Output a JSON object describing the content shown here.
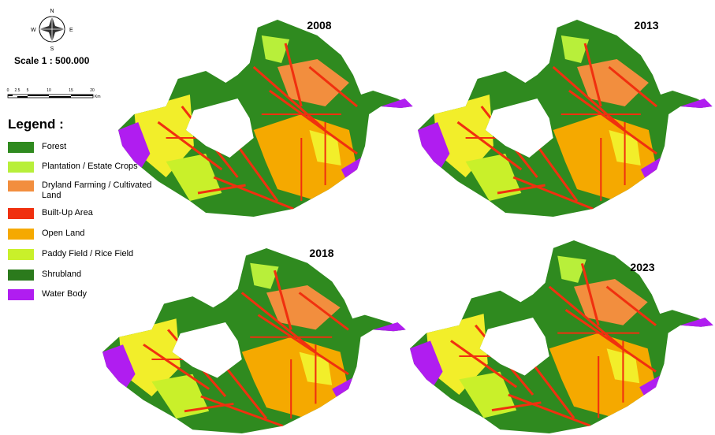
{
  "compass": {
    "north": "N",
    "south": "S",
    "east": "E",
    "west": "W"
  },
  "scale": {
    "label": "Scale 1 : 500.000",
    "ticks": [
      "0",
      "2.5",
      "5",
      "10",
      "15",
      "20"
    ],
    "unit": "Km"
  },
  "legend": {
    "title": "Legend :",
    "items": [
      {
        "label": "Forest",
        "color": "#2f8a1f"
      },
      {
        "label": "Plantation / Estate Crops",
        "color": "#b8ef3a"
      },
      {
        "label": "Dryland Farming / Cultivated Land",
        "color": "#f28e3e"
      },
      {
        "label": "Built-Up Area",
        "color": "#f0300f"
      },
      {
        "label": "Open Land",
        "color": "#f5a900"
      },
      {
        "label": "Paddy Field / Rice Field",
        "color": "#c9f02a"
      },
      {
        "label": "Shrubland",
        "color": "#2b7a1c"
      },
      {
        "label": "Water Body",
        "color": "#b01df0"
      }
    ]
  },
  "maps": [
    {
      "year": "2008"
    },
    {
      "year": "2013"
    },
    {
      "year": "2018"
    },
    {
      "year": "2023"
    }
  ]
}
